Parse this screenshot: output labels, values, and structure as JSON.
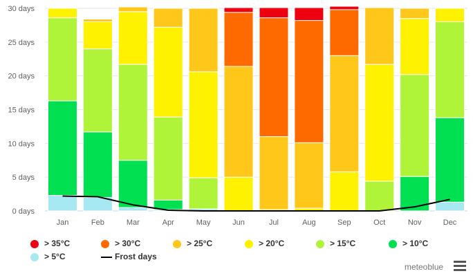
{
  "chart_data": {
    "type": "bar",
    "stacked": true,
    "categories": [
      "Jan",
      "Feb",
      "Mar",
      "Apr",
      "May",
      "Jun",
      "Jul",
      "Aug",
      "Sep",
      "Oct",
      "Nov",
      "Dec"
    ],
    "y_axis": {
      "ylim": [
        0,
        30
      ],
      "ticks": [
        {
          "value": 0,
          "label": "0 days"
        },
        {
          "value": 5,
          "label": "5 days"
        },
        {
          "value": 10,
          "label": "10 days"
        },
        {
          "value": 15,
          "label": "15 days"
        },
        {
          "value": 20,
          "label": "20 days"
        },
        {
          "value": 25,
          "label": "25 days"
        },
        {
          "value": 30,
          "label": "30 days"
        }
      ]
    },
    "grid": true,
    "series": [
      {
        "name": "> 5°C",
        "color": "#a6e9f2",
        "values": [
          2.3,
          2.0,
          0.5,
          0.2,
          0.3,
          0,
          0,
          0,
          0,
          0,
          0,
          1.3
        ]
      },
      {
        "name": "> 10°C",
        "color": "#00e051",
        "values": [
          14.0,
          9.7,
          7.0,
          1.4,
          0,
          0,
          0,
          0,
          0,
          0,
          5.1,
          12.5
        ]
      },
      {
        "name": "> 15°C",
        "color": "#b0f43a",
        "values": [
          12.3,
          12.3,
          14.2,
          12.3,
          4.6,
          0,
          0,
          0,
          0,
          4.4,
          15.1,
          14.2
        ]
      },
      {
        "name": "> 20°C",
        "color": "#fff200",
        "values": [
          1.4,
          4.0,
          7.8,
          13.3,
          15.7,
          5.0,
          0.2,
          0.4,
          5.8,
          17.3,
          8.3,
          2.0
        ]
      },
      {
        "name": "> 25°C",
        "color": "#ffc71a",
        "values": [
          0,
          0.4,
          0.7,
          2.8,
          9.4,
          16.4,
          10.8,
          9.7,
          17.2,
          8.4,
          1.5,
          0
        ]
      },
      {
        "name": "> 30°C",
        "color": "#ff6a00",
        "values": [
          0,
          0,
          0,
          0.1,
          0,
          8.0,
          17.6,
          18.1,
          6.8,
          0,
          0,
          0
        ]
      },
      {
        "name": "> 35°C",
        "color": "#ee0010",
        "values": [
          0,
          0,
          0,
          0,
          0,
          0.7,
          1.5,
          1.9,
          0.5,
          0,
          0,
          0
        ]
      }
    ],
    "line_series": {
      "name": "Frost days",
      "color": "#000000",
      "values": [
        2.2,
        2.1,
        0.9,
        0.1,
        0,
        0,
        0,
        0,
        0,
        0,
        0.6,
        1.7
      ]
    },
    "legend_order": [
      "> 35°C",
      "> 30°C",
      "> 25°C",
      "> 20°C",
      "> 15°C",
      "> 10°C",
      "> 5°C",
      "Frost days"
    ],
    "legend_position": "bottom"
  },
  "credit": "meteoblue"
}
